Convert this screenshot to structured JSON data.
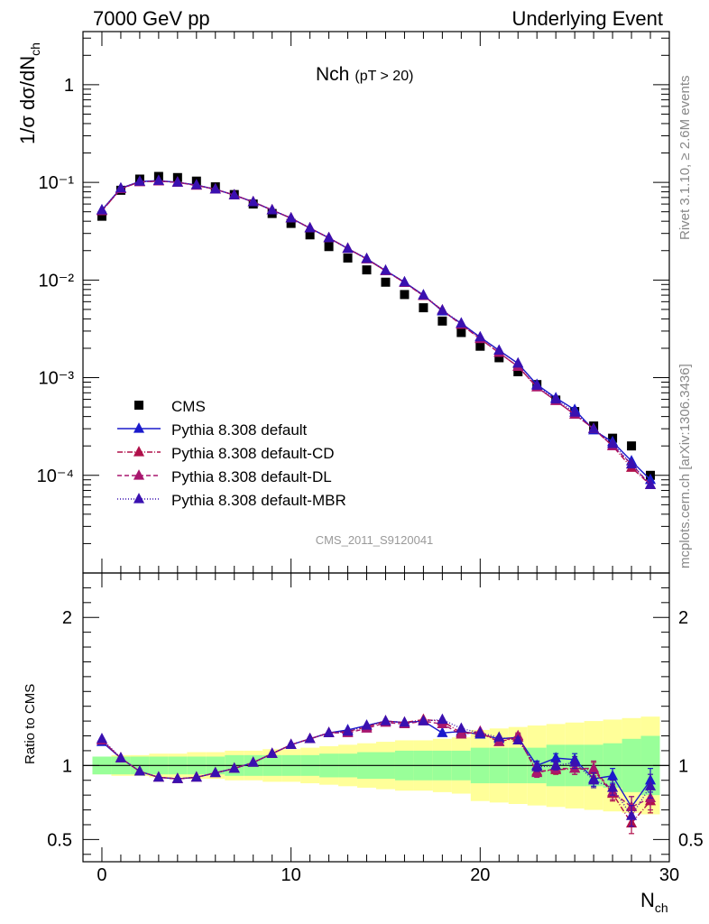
{
  "header": {
    "left": "7000 GeV pp",
    "right": "Underlying Event"
  },
  "side_labels": {
    "rivet": "Rivet 3.1.10, ≥ 2.6M events",
    "mcplots": "mcplots.cern.ch [arXiv:1306.3436]"
  },
  "chart_data": {
    "type": "scatter",
    "title": "Nch",
    "title_sub": "(pT > 20)",
    "watermark": "CMS_2011_S9120041",
    "xlabel_main": "N",
    "xlabel_sub": "ch",
    "ylabel": "1/σ dσ/dN",
    "ylabel_sub": "ch",
    "ratio_ylabel": "Ratio to CMS",
    "xlim": [
      -1,
      30
    ],
    "ylim": [
      1e-05,
      3.5
    ],
    "ylog": true,
    "ratio_ylim": [
      0.35,
      2.3
    ],
    "x_ticks": [
      "0",
      "10",
      "20",
      "30"
    ],
    "y_ticks": [
      "10⁻⁴",
      "10⁻³",
      "10⁻²",
      "10⁻¹",
      "1"
    ],
    "ratio_ticks": [
      "0.5",
      "1",
      "2"
    ],
    "legend_position": "bottom-left",
    "x": [
      0,
      1,
      2,
      3,
      4,
      5,
      6,
      7,
      8,
      9,
      10,
      11,
      12,
      13,
      14,
      15,
      16,
      17,
      18,
      19,
      20,
      21,
      22,
      23,
      24,
      25,
      26,
      27,
      28,
      29
    ],
    "reference": {
      "name": "CMS",
      "color": "#000000",
      "values": [
        0.045,
        0.083,
        0.108,
        0.115,
        0.112,
        0.103,
        0.09,
        0.075,
        0.06,
        0.048,
        0.038,
        0.029,
        0.022,
        0.0168,
        0.0127,
        0.0095,
        0.0071,
        0.0052,
        0.0038,
        0.0029,
        0.0021,
        0.0016,
        0.00115,
        0.00085,
        0.00059,
        0.00045,
        0.00032,
        0.00024,
        0.0002,
        0.0001
      ],
      "band_inner": [
        0.06,
        0.06,
        0.06,
        0.06,
        0.06,
        0.06,
        0.06,
        0.07,
        0.07,
        0.07,
        0.07,
        0.07,
        0.08,
        0.08,
        0.09,
        0.09,
        0.1,
        0.1,
        0.1,
        0.1,
        0.12,
        0.12,
        0.12,
        0.12,
        0.14,
        0.14,
        0.14,
        0.15,
        0.18,
        0.2
      ],
      "band_outer": [
        0.06,
        0.07,
        0.07,
        0.08,
        0.08,
        0.09,
        0.09,
        0.1,
        0.1,
        0.11,
        0.11,
        0.12,
        0.13,
        0.14,
        0.15,
        0.16,
        0.17,
        0.17,
        0.18,
        0.19,
        0.24,
        0.25,
        0.26,
        0.27,
        0.28,
        0.29,
        0.3,
        0.31,
        0.32,
        0.33
      ]
    },
    "series": [
      {
        "name": "Pythia 8.308 default",
        "color": "#1a1acc",
        "dash": "",
        "values": [
          0.052,
          0.087,
          0.102,
          0.104,
          0.1,
          0.094,
          0.085,
          0.074,
          0.063,
          0.052,
          0.043,
          0.034,
          0.027,
          0.021,
          0.0165,
          0.0125,
          0.0095,
          0.007,
          0.0048,
          0.0036,
          0.0026,
          0.0019,
          0.0014,
          0.00085,
          0.00062,
          0.00047,
          0.00029,
          0.00022,
          0.00014,
          9e-05
        ],
        "ratio": [
          1.16,
          1.05,
          0.96,
          0.92,
          0.91,
          0.92,
          0.95,
          0.98,
          1.02,
          1.08,
          1.14,
          1.18,
          1.22,
          1.24,
          1.27,
          1.3,
          1.29,
          1.3,
          1.22,
          1.23,
          1.21,
          1.18,
          1.19,
          1.0,
          1.05,
          1.04,
          0.91,
          0.93,
          0.72,
          0.9
        ],
        "err": [
          0,
          0,
          0,
          0,
          0,
          0,
          0,
          0,
          0,
          0,
          0,
          0,
          0,
          0,
          0,
          0,
          0,
          0,
          0,
          0,
          0,
          0,
          0.02,
          0.03,
          0.03,
          0.04,
          0.05,
          0.05,
          0.07,
          0.08
        ]
      },
      {
        "name": "Pythia 8.308 default-CD",
        "color": "#b0104a",
        "dash": "6,2,1,2",
        "values": [
          0.051,
          0.086,
          0.101,
          0.103,
          0.1,
          0.093,
          0.085,
          0.074,
          0.063,
          0.052,
          0.043,
          0.034,
          0.027,
          0.021,
          0.0164,
          0.0124,
          0.0094,
          0.0069,
          0.0049,
          0.0035,
          0.0025,
          0.0018,
          0.0013,
          0.0008,
          0.00058,
          0.00042,
          0.0003,
          0.0002,
          0.00012,
          8e-05
        ],
        "ratio": [
          1.17,
          1.05,
          0.96,
          0.92,
          0.91,
          0.92,
          0.95,
          0.98,
          1.02,
          1.08,
          1.14,
          1.18,
          1.22,
          1.23,
          1.26,
          1.3,
          1.29,
          1.31,
          1.3,
          1.22,
          1.22,
          1.16,
          1.19,
          0.96,
          0.97,
          0.98,
          0.97,
          0.81,
          0.61,
          0.76
        ],
        "err": [
          0,
          0,
          0,
          0,
          0,
          0,
          0,
          0,
          0,
          0,
          0,
          0,
          0,
          0,
          0,
          0,
          0,
          0,
          0,
          0,
          0,
          0,
          0.02,
          0.03,
          0.03,
          0.04,
          0.05,
          0.05,
          0.07,
          0.08
        ]
      },
      {
        "name": "Pythia 8.308 default-DL",
        "color": "#a8166e",
        "dash": "5,3",
        "values": [
          0.051,
          0.086,
          0.101,
          0.103,
          0.1,
          0.093,
          0.085,
          0.074,
          0.063,
          0.052,
          0.043,
          0.034,
          0.027,
          0.021,
          0.0164,
          0.0124,
          0.0094,
          0.0069,
          0.0049,
          0.0035,
          0.0025,
          0.0018,
          0.0013,
          0.0008,
          0.00058,
          0.00042,
          0.0003,
          0.0002,
          0.00013,
          8e-05
        ],
        "ratio": [
          1.17,
          1.05,
          0.96,
          0.92,
          0.91,
          0.92,
          0.95,
          0.98,
          1.02,
          1.08,
          1.14,
          1.18,
          1.22,
          1.22,
          1.25,
          1.29,
          1.28,
          1.3,
          1.28,
          1.21,
          1.23,
          1.16,
          1.2,
          0.95,
          0.98,
          0.98,
          0.98,
          0.82,
          0.72,
          0.78
        ],
        "err": [
          0,
          0,
          0,
          0,
          0,
          0,
          0,
          0,
          0,
          0,
          0,
          0,
          0,
          0,
          0,
          0,
          0,
          0,
          0,
          0,
          0,
          0,
          0.02,
          0.03,
          0.03,
          0.04,
          0.05,
          0.05,
          0.07,
          0.08
        ]
      },
      {
        "name": "Pythia 8.308 default-MBR",
        "color": "#3a10b0",
        "dash": "1,2",
        "values": [
          0.052,
          0.087,
          0.102,
          0.104,
          0.1,
          0.094,
          0.085,
          0.074,
          0.063,
          0.052,
          0.043,
          0.034,
          0.027,
          0.021,
          0.0165,
          0.0125,
          0.0095,
          0.007,
          0.0049,
          0.0036,
          0.0026,
          0.0019,
          0.0014,
          0.00083,
          0.0006,
          0.00044,
          0.0003,
          0.00021,
          0.00013,
          8e-05
        ],
        "ratio": [
          1.18,
          1.05,
          0.96,
          0.92,
          0.91,
          0.92,
          0.95,
          0.98,
          1.02,
          1.08,
          1.14,
          1.18,
          1.22,
          1.23,
          1.27,
          1.3,
          1.29,
          1.3,
          1.31,
          1.25,
          1.22,
          1.19,
          1.17,
          0.99,
          1.0,
          1.02,
          0.9,
          0.85,
          0.66,
          0.86
        ],
        "err": [
          0,
          0,
          0,
          0,
          0,
          0,
          0,
          0,
          0,
          0,
          0,
          0,
          0,
          0,
          0,
          0,
          0,
          0,
          0,
          0,
          0,
          0,
          0.02,
          0.03,
          0.03,
          0.04,
          0.05,
          0.05,
          0.07,
          0.08
        ]
      }
    ]
  }
}
